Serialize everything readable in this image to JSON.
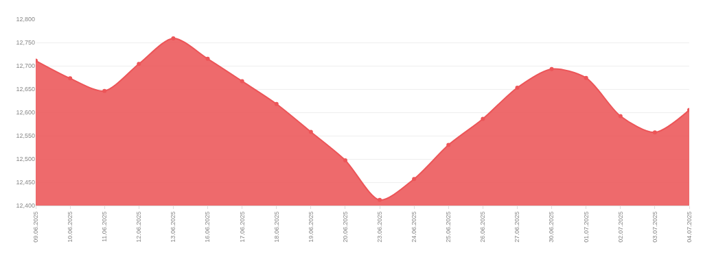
{
  "chart_data": {
    "type": "area",
    "categories": [
      "09.06.2025",
      "10.06.2025",
      "11.06.2025",
      "12.06.2025",
      "13.06.2025",
      "16.06.2025",
      "17.06.2025",
      "18.06.2025",
      "19.06.2025",
      "20.06.2025",
      "23.06.2025",
      "24.06.2025",
      "25.06.2025",
      "26.06.2025",
      "27.06.2025",
      "30.06.2025",
      "01.07.2025",
      "02.07.2025",
      "03.07.2025",
      "04.07.2025"
    ],
    "series": [
      {
        "color": "#ec5558",
        "values": [
          12711,
          12673,
          12646,
          12704,
          12759,
          12715,
          12667,
          12618,
          12558,
          12497,
          12412,
          12457,
          12530,
          12586,
          12653,
          12693,
          12674,
          12592,
          12557,
          12605
        ]
      }
    ],
    "ylim": [
      12400,
      12800
    ],
    "yticks": [
      {
        "value": 12400,
        "label": "12,400"
      },
      {
        "value": 12450,
        "label": "12,450"
      },
      {
        "value": 12500,
        "label": "12,500"
      },
      {
        "value": 12550,
        "label": "12,550"
      },
      {
        "value": 12600,
        "label": "12,600"
      },
      {
        "value": 12650,
        "label": "12,650"
      },
      {
        "value": 12700,
        "label": "12,700"
      },
      {
        "value": 12750,
        "label": "12,750"
      },
      {
        "value": 12800,
        "label": "12,800"
      }
    ],
    "grid": "y",
    "marker": "circle"
  }
}
